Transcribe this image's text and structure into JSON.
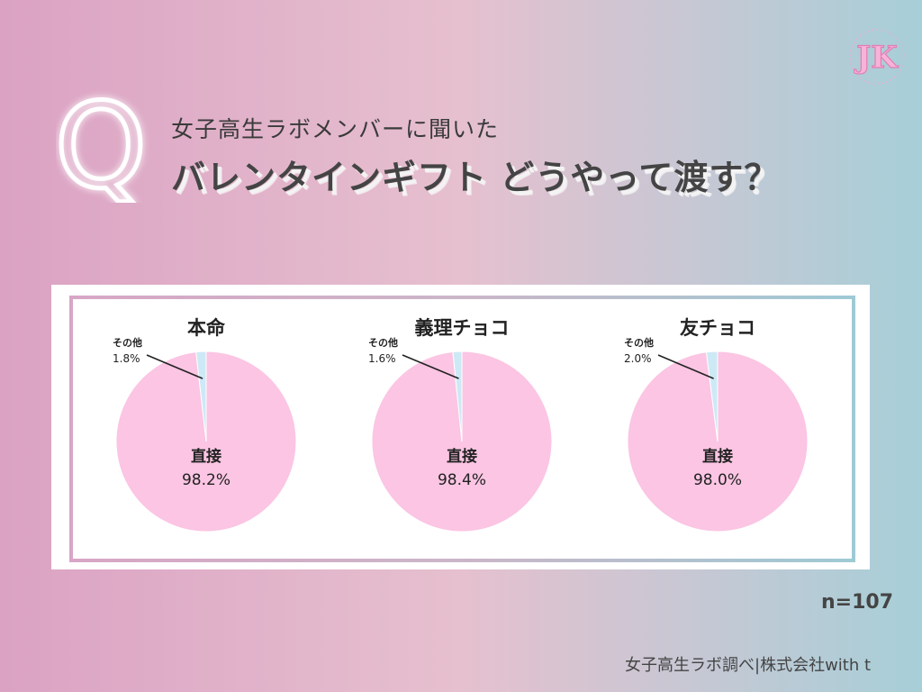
{
  "header": {
    "subtitle": "女子高生ラボメンバーに聞いた",
    "title": "バレンタインギフト どうやって渡す？",
    "q_letter": "Q",
    "logo_text": "JK"
  },
  "chart_data": [
    {
      "type": "pie",
      "title": "本命",
      "slices": [
        {
          "label": "直接",
          "value": 98.2,
          "display": "98.2%",
          "color": "#fbc5e3"
        },
        {
          "label": "その他",
          "value": 1.8,
          "display": "1.8%",
          "color": "#cde9f6"
        }
      ]
    },
    {
      "type": "pie",
      "title": "義理チョコ",
      "slices": [
        {
          "label": "直接",
          "value": 98.4,
          "display": "98.4%",
          "color": "#fbc5e3"
        },
        {
          "label": "その他",
          "value": 1.6,
          "display": "1.6%",
          "color": "#cde9f6"
        }
      ]
    },
    {
      "type": "pie",
      "title": "友チョコ",
      "slices": [
        {
          "label": "直接",
          "value": 98.0,
          "display": "98.0%",
          "color": "#fbc5e3"
        },
        {
          "label": "その他",
          "value": 2.0,
          "display": "2.0%",
          "color": "#cde9f6"
        }
      ]
    }
  ],
  "footer": {
    "sample_size": "n=107",
    "credit": "女子高生ラボ調べ|株式会社with t"
  }
}
